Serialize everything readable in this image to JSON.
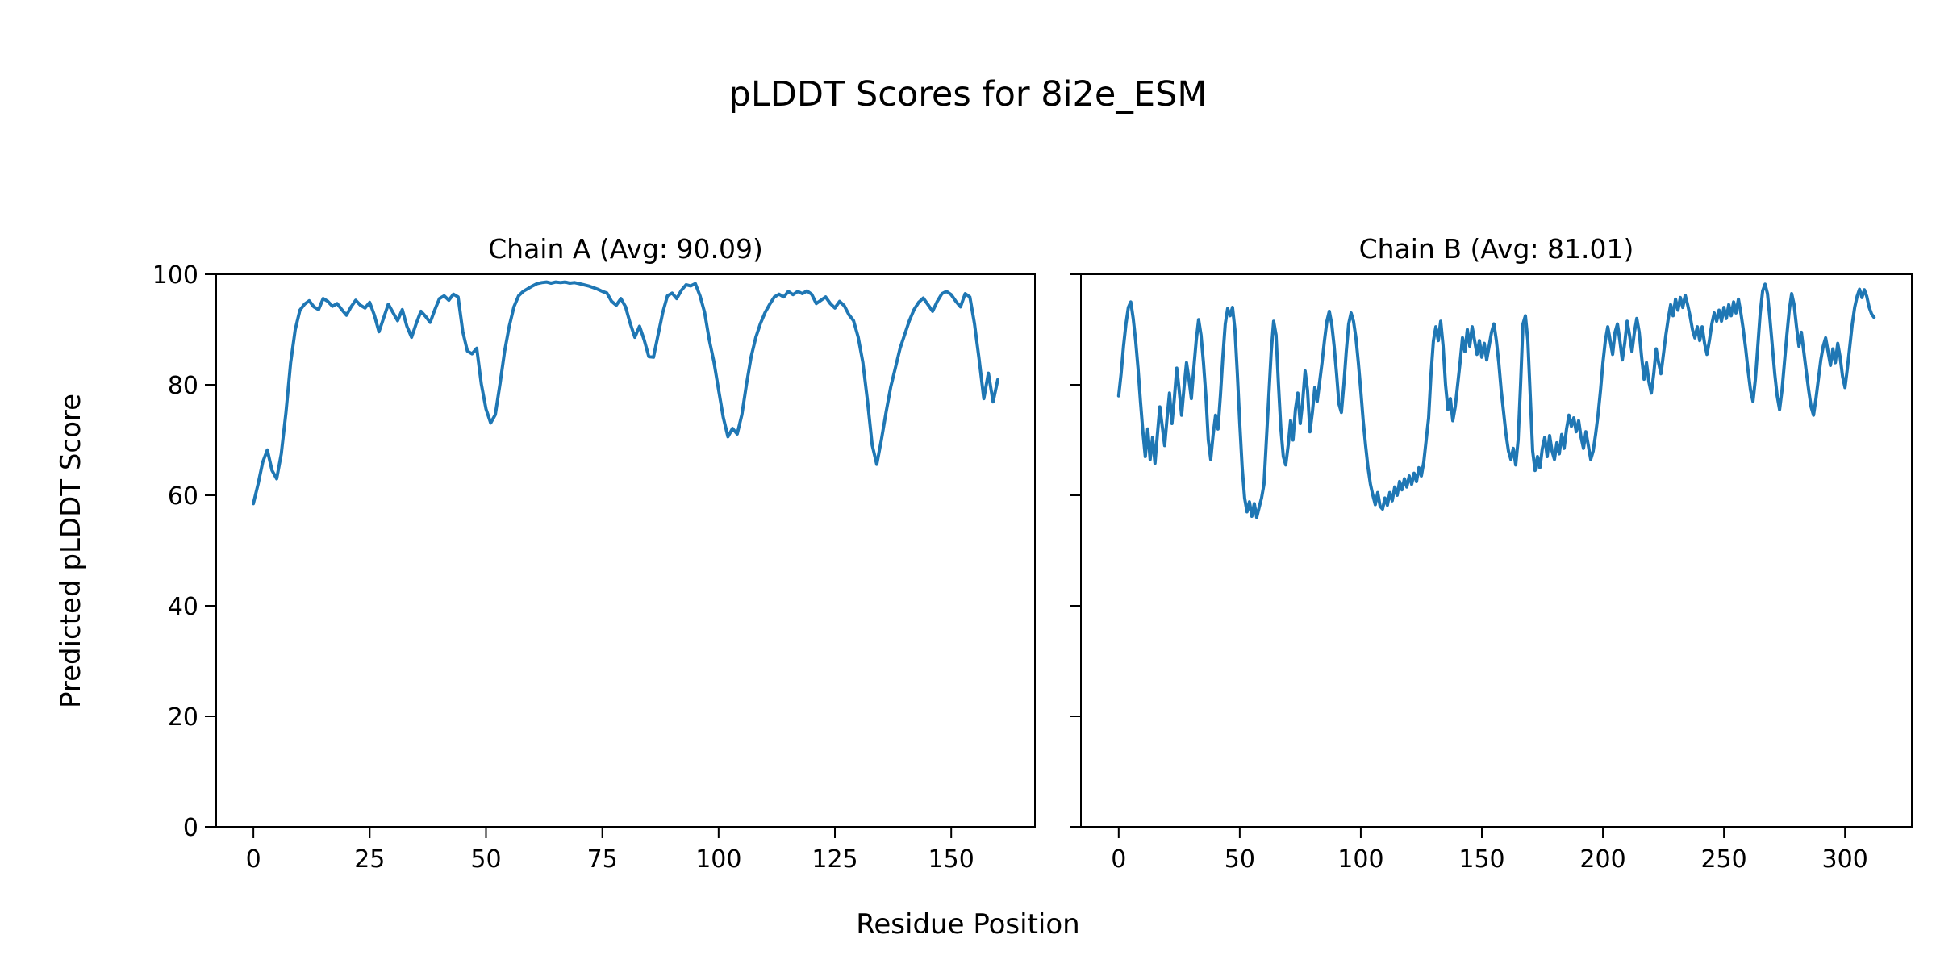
{
  "figure": {
    "suptitle": "pLDDT Scores for 8i2e_ESM",
    "xlabel": "Residue Position",
    "ylabel": "Predicted pLDDT Score",
    "background_color": "#ffffff",
    "text_color": "#000000",
    "line_color": "#1f77b4"
  },
  "chart_data": [
    {
      "type": "line",
      "title": "Chain A (Avg: 90.09)",
      "average_plddt": 90.09,
      "x_start": 0,
      "x_step": 1,
      "xlim": [
        -8,
        168
      ],
      "ylim": [
        0,
        100
      ],
      "xticks": [
        0,
        25,
        50,
        75,
        100,
        125,
        150
      ],
      "yticks": [
        0,
        20,
        40,
        60,
        80,
        100
      ],
      "show_y_tick_labels": true,
      "grid": false,
      "legend": null,
      "values": [
        58.5,
        62,
        66,
        68.2,
        64.5,
        63,
        67.5,
        75,
        84,
        90,
        93.5,
        94.6,
        95.2,
        94.1,
        93.6,
        95.6,
        95.1,
        94.2,
        94.7,
        93.6,
        92.6,
        94.1,
        95.3,
        94.4,
        93.9,
        94.9,
        92.6,
        89.6,
        92.1,
        94.6,
        93.1,
        91.6,
        93.6,
        90.6,
        88.6,
        91.1,
        93.3,
        92.4,
        91.3,
        93.6,
        95.6,
        96.1,
        95.3,
        96.4,
        95.9,
        89.6,
        86.1,
        85.6,
        86.6,
        80.1,
        75.6,
        73.1,
        74.6,
        80.1,
        86.1,
        90.6,
        94.1,
        96.1,
        96.9,
        97.4,
        97.9,
        98.3,
        98.5,
        98.6,
        98.4,
        98.6,
        98.5,
        98.6,
        98.4,
        98.5,
        98.3,
        98.1,
        97.9,
        97.6,
        97.3,
        96.9,
        96.6,
        95.1,
        94.4,
        95.6,
        94.1,
        91.1,
        88.6,
        90.6,
        88.1,
        85.1,
        85,
        89.1,
        93.1,
        96.1,
        96.6,
        95.6,
        97.1,
        98.1,
        97.9,
        98.3,
        96.1,
        93.1,
        88.1,
        84.1,
        79.1,
        74.1,
        70.6,
        72.1,
        71.1,
        74.6,
        80.1,
        85.1,
        88.6,
        91.1,
        93.1,
        94.6,
        95.9,
        96.4,
        95.9,
        96.9,
        96.3,
        96.9,
        96.5,
        97,
        96.4,
        94.7,
        95.3,
        95.9,
        94.7,
        93.9,
        95.1,
        94.3,
        92.7,
        91.6,
        88.6,
        84.1,
        77.1,
        69.1,
        65.6,
        70.1,
        75.1,
        79.6,
        83.1,
        86.6,
        89.1,
        91.6,
        93.6,
        94.9,
        95.7,
        94.5,
        93.3,
        95.1,
        96.5,
        96.9,
        96.3,
        95.1,
        94.1,
        96.5,
        95.9,
        91.1,
        84.6,
        77.5,
        82.1,
        76.9,
        80.9
      ]
    },
    {
      "type": "line",
      "title": "Chain B (Avg: 81.01)",
      "average_plddt": 81.01,
      "x_start": 0,
      "x_step": 1,
      "xlim": [
        -15.6,
        327.6
      ],
      "ylim": [
        0,
        100
      ],
      "xticks": [
        0,
        50,
        100,
        150,
        200,
        250,
        300
      ],
      "yticks": [
        0,
        20,
        40,
        60,
        80,
        100
      ],
      "show_y_tick_labels": false,
      "grid": false,
      "legend": null,
      "values": [
        78,
        82,
        87,
        91,
        94,
        95,
        92,
        88,
        83,
        77,
        71.5,
        67,
        72,
        66.5,
        70.5,
        65.8,
        71,
        76,
        72.5,
        69,
        74,
        78.5,
        73,
        77.5,
        83,
        79,
        74.5,
        79.5,
        84,
        81,
        77.5,
        83,
        88,
        91.8,
        89,
        84,
        78,
        70,
        66.5,
        71,
        74.5,
        72,
        78,
        85,
        91,
        93.8,
        92.5,
        94,
        90,
        82,
        73,
        65,
        59.5,
        57,
        58.8,
        56.2,
        58.5,
        56,
        57.8,
        59.5,
        62,
        70,
        78,
        86,
        91.5,
        89,
        80,
        72,
        67,
        65.5,
        69,
        73.5,
        70,
        75.5,
        78.5,
        73,
        77,
        82.5,
        79,
        71.5,
        75,
        79.5,
        77,
        80.5,
        84,
        88,
        91.5,
        93.3,
        91,
        87,
        82,
        76.5,
        75,
        80,
        86,
        91,
        93,
        91.5,
        88.5,
        84,
        79,
        73.5,
        69,
        65,
        62,
        60,
        58.3,
        60.5,
        58,
        57.5,
        59.5,
        58.2,
        60.5,
        59,
        61.5,
        60,
        62.5,
        61,
        63,
        61.5,
        63.5,
        62,
        64,
        62.5,
        65,
        63.5,
        66,
        70,
        74,
        82,
        88,
        90.5,
        88,
        91.5,
        87,
        80,
        75.5,
        77.5,
        73.5,
        76,
        80,
        84,
        88.5,
        86,
        90,
        87,
        90.5,
        88,
        85.5,
        88,
        85,
        87.5,
        84.5,
        87,
        89.5,
        91,
        88,
        84,
        79,
        75,
        71,
        68,
        66.5,
        68.5,
        65.5,
        70,
        80,
        91,
        92.5,
        88,
        78,
        68,
        64.5,
        67,
        65,
        68.5,
        70.5,
        67,
        70.8,
        68,
        66.5,
        69.5,
        67.5,
        71,
        68.5,
        72,
        74.5,
        72.5,
        74,
        71.5,
        73.5,
        70.5,
        68.5,
        71.5,
        69,
        66.5,
        68,
        71,
        74.5,
        79,
        84,
        88,
        90.5,
        88,
        85.5,
        89.5,
        91,
        88,
        84.5,
        87.5,
        91.5,
        89,
        86,
        89.5,
        92,
        89.5,
        85,
        81,
        84,
        80.5,
        78.5,
        82,
        86.5,
        84,
        82,
        85.5,
        89,
        92,
        94.5,
        92.5,
        95.5,
        93.5,
        95.8,
        94,
        96.2,
        94.5,
        92.5,
        90,
        88.5,
        90.5,
        88,
        90.5,
        87.5,
        85.5,
        88,
        91,
        93,
        91.5,
        93.5,
        91.5,
        94,
        92,
        94.5,
        92.5,
        95,
        93,
        95.5,
        93,
        90,
        86.5,
        82.5,
        79,
        77,
        81,
        87,
        93,
        97,
        98.2,
        96.5,
        92,
        87,
        82,
        78,
        75.5,
        79,
        84,
        89,
        93.5,
        96.5,
        94.5,
        90.5,
        87,
        89.5,
        86,
        82.5,
        79,
        76,
        74.5,
        77.5,
        81,
        84.5,
        87,
        88.5,
        86,
        83.5,
        86.5,
        84,
        87.5,
        85,
        81.5,
        79.5,
        83,
        87,
        91,
        94,
        96,
        97.3,
        95.8,
        97.2,
        96,
        94,
        92.8,
        92.2
      ]
    }
  ]
}
